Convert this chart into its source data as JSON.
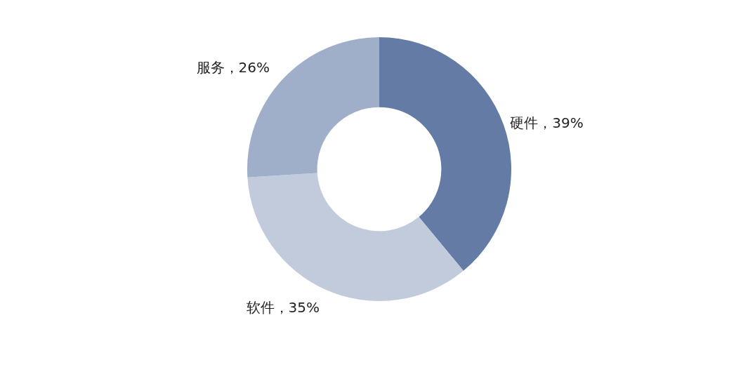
{
  "chart_data": {
    "type": "donut",
    "categories": [
      "硬件",
      "软件",
      "服务"
    ],
    "values": [
      39,
      35,
      26
    ],
    "colors": [
      "#647ba5",
      "#c2cbdc",
      "#a0afc9"
    ],
    "value_labels": [
      "，39%",
      "，35%",
      "，26%"
    ]
  }
}
